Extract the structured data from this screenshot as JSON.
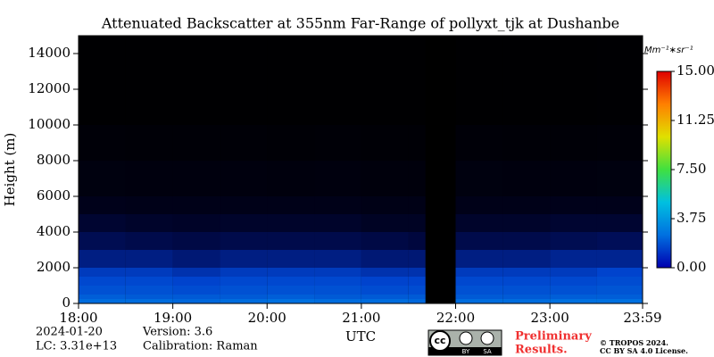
{
  "chart_data": {
    "type": "heatmap",
    "title": "Attenuated Backscatter at 355nm Far-Range of pollyxt_tjk at Dushanbe",
    "y_label": "Height (m)",
    "x_label": "UTC",
    "colorbar_label": "Mm⁻¹∗sr⁻¹",
    "x_edges": [
      18,
      18.5,
      19,
      19.5,
      20,
      20.5,
      21,
      21.5,
      21.68,
      22,
      22.5,
      23,
      23.5,
      23.9833
    ],
    "y_edges": [
      0,
      250,
      500,
      1000,
      1500,
      2000,
      3000,
      4000,
      5000,
      6000,
      8000,
      10000,
      15000
    ],
    "z": [
      [
        2.4,
        2.1,
        1.8,
        1.6,
        1.4,
        1.0,
        0.65,
        0.4,
        0.22,
        0.13,
        0.07,
        0.02
      ],
      [
        2.4,
        2.0,
        1.8,
        1.6,
        1.4,
        1.0,
        0.6,
        0.35,
        0.2,
        0.12,
        0.06,
        0.02
      ],
      [
        2.3,
        2.0,
        1.7,
        1.5,
        1.3,
        0.9,
        0.55,
        0.33,
        0.2,
        0.12,
        0.06,
        0.02
      ],
      [
        2.4,
        2.0,
        1.8,
        1.6,
        1.4,
        1.0,
        0.6,
        0.35,
        0.2,
        0.12,
        0.06,
        0.02
      ],
      [
        2.5,
        2.1,
        1.8,
        1.6,
        1.4,
        1.0,
        0.6,
        0.35,
        0.2,
        0.11,
        0.05,
        0.02
      ],
      [
        2.4,
        2.0,
        1.8,
        1.6,
        1.4,
        1.0,
        0.6,
        0.35,
        0.2,
        0.12,
        0.06,
        0.02
      ],
      [
        2.4,
        2.0,
        1.7,
        1.5,
        1.3,
        0.9,
        0.55,
        0.3,
        0.18,
        0.1,
        0.05,
        0.02
      ],
      [
        2.3,
        2.0,
        1.7,
        1.5,
        1.3,
        0.9,
        0.5,
        0.3,
        0.18,
        0.1,
        0.05,
        0.02
      ],
      [
        null,
        null,
        null,
        null,
        null,
        null,
        null,
        null,
        null,
        null,
        null,
        null
      ],
      [
        2.4,
        2.0,
        1.8,
        1.6,
        1.4,
        1.0,
        0.6,
        0.35,
        0.2,
        0.13,
        0.07,
        0.02
      ],
      [
        2.4,
        2.0,
        1.8,
        1.6,
        1.4,
        1.0,
        0.6,
        0.35,
        0.2,
        0.12,
        0.06,
        0.02
      ],
      [
        2.5,
        2.1,
        1.8,
        1.6,
        1.4,
        1.1,
        0.65,
        0.4,
        0.22,
        0.12,
        0.06,
        0.02
      ],
      [
        2.5,
        2.1,
        1.9,
        1.7,
        1.5,
        1.1,
        0.7,
        0.4,
        0.22,
        0.13,
        0.07,
        0.03
      ]
    ],
    "xlim": [
      18,
      23.9833
    ],
    "ylim": [
      0,
      15000
    ],
    "xticks": [
      {
        "value": 18,
        "label": "18:00"
      },
      {
        "value": 19,
        "label": "19:00"
      },
      {
        "value": 20,
        "label": "20:00"
      },
      {
        "value": 21,
        "label": "21:00"
      },
      {
        "value": 22,
        "label": "22:00"
      },
      {
        "value": 23,
        "label": "23:00"
      },
      {
        "value": 23.9833,
        "label": "23:59"
      }
    ],
    "yticks": [
      0,
      2000,
      4000,
      6000,
      8000,
      10000,
      12000,
      14000
    ],
    "clim": [
      0,
      15
    ],
    "cticks": [
      {
        "value": 0,
        "label": "0.00"
      },
      {
        "value": 3.75,
        "label": "3.75"
      },
      {
        "value": 7.5,
        "label": "7.50"
      },
      {
        "value": 11.25,
        "label": "11.25"
      },
      {
        "value": 15,
        "label": "15.00"
      }
    ],
    "colorscale": [
      "#0000b0",
      "#0070e0",
      "#00c0e0",
      "#40e040",
      "#e0e000",
      "#ff8000",
      "#e00000"
    ]
  },
  "footer": {
    "date": "2024-01-20",
    "lc": "LC: 3.31e+13",
    "version": "Version: 3.6",
    "calibration": "Calibration: Raman",
    "preliminary": [
      "Preliminary",
      "Results."
    ],
    "logo": [
      "cc",
      "BY",
      "SA"
    ],
    "copyright": "© TROPOS 2024.",
    "license": "CC BY SA 4.0 License."
  }
}
